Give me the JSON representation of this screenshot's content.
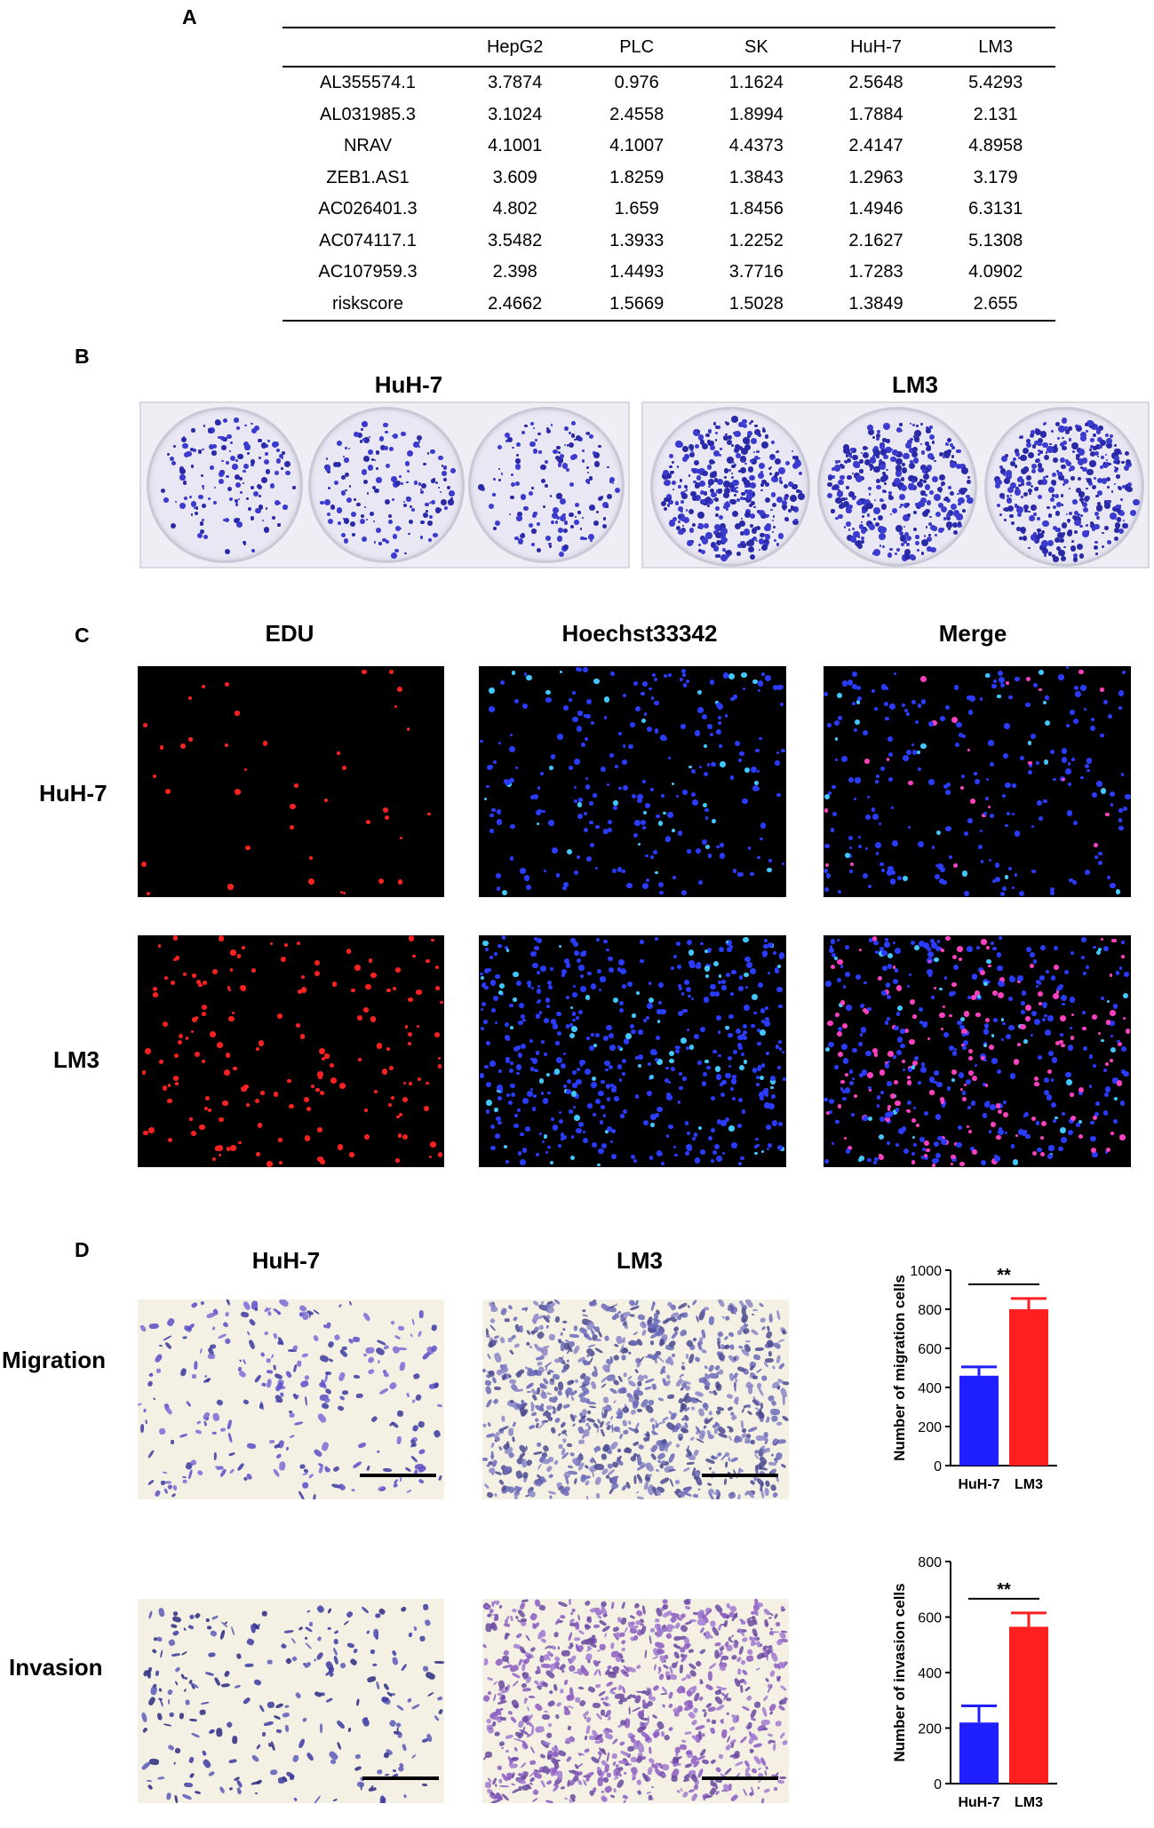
{
  "panels": {
    "a": "A",
    "b": "B",
    "c": "C",
    "d": "D"
  },
  "table": {
    "header": [
      "",
      "HepG2",
      "PLC",
      "SK",
      "HuH-7",
      "LM3"
    ],
    "rows": [
      [
        "AL355574.1",
        "3.7874",
        "0.976",
        "1.1624",
        "2.5648",
        "5.4293"
      ],
      [
        "AL031985.3",
        "3.1024",
        "2.4558",
        "1.8994",
        "1.7884",
        "2.131"
      ],
      [
        "NRAV",
        "4.1001",
        "4.1007",
        "4.4373",
        "2.4147",
        "4.8958"
      ],
      [
        "ZEB1.AS1",
        "3.609",
        "1.8259",
        "1.3843",
        "1.2963",
        "3.179"
      ],
      [
        "AC026401.3",
        "4.802",
        "1.659",
        "1.8456",
        "1.4946",
        "6.3131"
      ],
      [
        "AC074117.1",
        "3.5482",
        "1.3933",
        "1.2252",
        "2.1627",
        "5.1308"
      ],
      [
        "AC107959.3",
        "2.398",
        "1.4493",
        "3.7716",
        "1.7283",
        "4.0902"
      ],
      [
        "riskscore",
        "2.4662",
        "1.5669",
        "1.5028",
        "1.3849",
        "2.655"
      ]
    ]
  },
  "colony": {
    "left_label": "HuH-7",
    "right_label": "LM3"
  },
  "edu": {
    "col1": "EDU",
    "col2": "Hoechst33342",
    "col3": "Merge",
    "row1": "HuH-7",
    "row2": "LM3"
  },
  "transwell": {
    "col1": "HuH-7",
    "col2": "LM3",
    "row1": "Migration",
    "row2": "Invasion"
  },
  "chart_data": [
    {
      "type": "bar",
      "categories": [
        "HuH-7",
        "LM3"
      ],
      "values": [
        460,
        800
      ],
      "errors": [
        45,
        55
      ],
      "colors": [
        "#1f1fff",
        "#ff1f1f"
      ],
      "ylabel": "Number of migration cells",
      "ylim": [
        0,
        1000
      ],
      "yticks": [
        "0",
        "200",
        "400",
        "600",
        "800",
        "1000"
      ],
      "significance": "**"
    },
    {
      "type": "bar",
      "categories": [
        "HuH-7",
        "LM3"
      ],
      "values": [
        220,
        565
      ],
      "errors": [
        60,
        50
      ],
      "colors": [
        "#1f1fff",
        "#ff1f1f"
      ],
      "ylabel": "Number of invasion cells",
      "ylim": [
        0,
        800
      ],
      "yticks": [
        "0",
        "200",
        "400",
        "600",
        "800"
      ],
      "significance": "**"
    }
  ]
}
